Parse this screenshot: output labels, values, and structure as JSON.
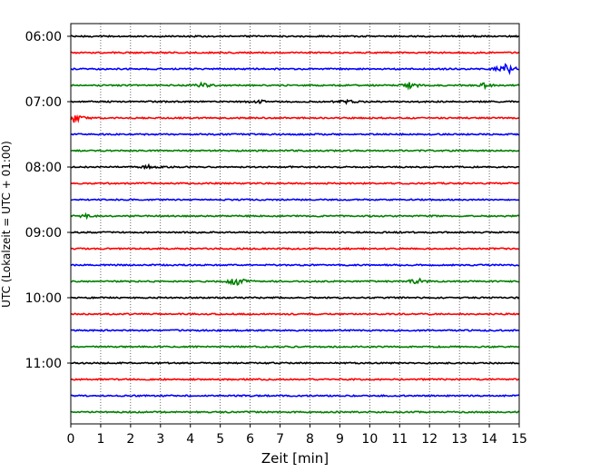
{
  "chart_data": {
    "type": "line",
    "title": "",
    "xlabel": "Zeit  [min]",
    "ylabel": "UTC (Lokalzeit = UTC + 01:00)",
    "xlim": [
      0,
      15
    ],
    "x_ticks": [
      0,
      1,
      2,
      3,
      4,
      5,
      6,
      7,
      8,
      9,
      10,
      11,
      12,
      13,
      14,
      15
    ],
    "x_tick_labels": [
      "0",
      "1",
      "2",
      "3",
      "4",
      "5",
      "6",
      "7",
      "8",
      "9",
      "10",
      "11",
      "12",
      "13",
      "14",
      "15"
    ],
    "y_tick_labels": [
      "06:00",
      "07:00",
      "08:00",
      "09:00",
      "10:00",
      "11:00"
    ],
    "y_tick_rows": [
      0,
      4,
      8,
      12,
      16,
      20
    ],
    "grid_x": true,
    "grid_style": "dotted",
    "trace_colors": [
      "#000000",
      "#ff0000",
      "#0000ff",
      "#008000"
    ],
    "row_start_times": [
      "06:00",
      "06:15",
      "06:30",
      "06:45",
      "07:00",
      "07:15",
      "07:30",
      "07:45",
      "08:00",
      "08:15",
      "08:30",
      "08:45",
      "09:00",
      "09:15",
      "09:30",
      "09:45",
      "10:00",
      "10:15",
      "10:30",
      "10:45",
      "11:00",
      "11:15",
      "11:30",
      "11:45"
    ],
    "events": [
      {
        "row": 2,
        "minute": 14.55,
        "amplitude": 2.4
      },
      {
        "row": 3,
        "minute": 4.4,
        "amplitude": 0.6
      },
      {
        "row": 3,
        "minute": 11.35,
        "amplitude": 1.1
      },
      {
        "row": 3,
        "minute": 13.85,
        "amplitude": 0.7
      },
      {
        "row": 4,
        "minute": 6.3,
        "amplitude": 0.7
      },
      {
        "row": 4,
        "minute": 9.2,
        "amplitude": 0.6
      },
      {
        "row": 5,
        "minute": 0.1,
        "amplitude": 1.7
      },
      {
        "row": 8,
        "minute": 2.6,
        "amplitude": 0.5
      },
      {
        "row": 11,
        "minute": 0.5,
        "amplitude": 0.4
      },
      {
        "row": 15,
        "minute": 5.55,
        "amplitude": 1.6
      },
      {
        "row": 15,
        "minute": 11.6,
        "amplitude": 1.0
      }
    ]
  }
}
